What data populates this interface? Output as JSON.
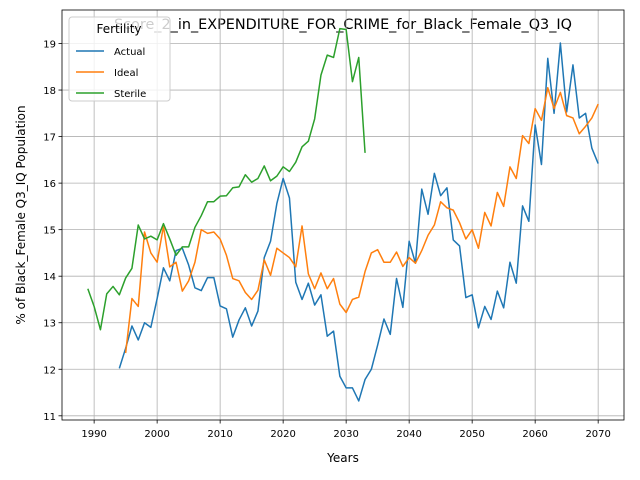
{
  "chart_data": {
    "type": "line",
    "title": "Score_2_in_EXPENDITURE_FOR_CRIME_for_Black_Female_Q3_IQ",
    "xlabel": "Years",
    "ylabel": "% of Black_Female Q3_IQ Population",
    "xlim": [
      1984.9,
      2074.1
    ],
    "ylim": [
      10.91,
      19.72
    ],
    "x_ticks": [
      1990,
      2000,
      2010,
      2020,
      2030,
      2040,
      2050,
      2060,
      2070
    ],
    "y_ticks": [
      11,
      12,
      13,
      14,
      15,
      16,
      17,
      18,
      19
    ],
    "grid": true,
    "legend": {
      "title": "Fertility",
      "placement": "top-left"
    },
    "series": [
      {
        "name": "Actual",
        "color": "#1f77b4",
        "x": [
          1994,
          1995,
          1996,
          1997,
          1998,
          1999,
          2000,
          2001,
          2002,
          2003,
          2004,
          2005,
          2006,
          2007,
          2008,
          2009,
          2010,
          2011,
          2012,
          2013,
          2014,
          2015,
          2016,
          2017,
          2018,
          2019,
          2020,
          2021,
          2022,
          2023,
          2024,
          2025,
          2026,
          2027,
          2028,
          2029,
          2030,
          2031,
          2032,
          2033,
          2034,
          2035,
          2036,
          2037,
          2038,
          2039,
          2040,
          2041,
          2042,
          2043,
          2044,
          2045,
          2046,
          2047,
          2048,
          2049,
          2050,
          2051,
          2052,
          2053,
          2054,
          2055,
          2056,
          2057,
          2058,
          2059,
          2060,
          2061,
          2062,
          2063,
          2064,
          2065,
          2066,
          2067,
          2068,
          2069,
          2070
        ],
        "y": [
          12.02,
          12.45,
          12.93,
          12.63,
          13.0,
          12.9,
          13.52,
          14.18,
          13.9,
          14.55,
          14.6,
          14.24,
          13.75,
          13.69,
          13.97,
          13.97,
          13.36,
          13.3,
          12.69,
          13.06,
          13.32,
          12.93,
          13.25,
          14.4,
          14.75,
          15.56,
          16.1,
          15.68,
          13.87,
          13.5,
          13.85,
          13.38,
          13.6,
          12.71,
          12.82,
          11.85,
          11.6,
          11.6,
          11.32,
          11.78,
          12.0,
          12.52,
          13.08,
          12.75,
          13.95,
          13.33,
          14.75,
          14.28,
          15.87,
          15.33,
          16.21,
          15.73,
          15.9,
          14.78,
          14.65,
          13.54,
          13.6,
          12.89,
          13.35,
          13.07,
          13.68,
          13.32,
          14.3,
          13.85,
          15.51,
          15.18,
          17.25,
          16.4,
          18.68,
          17.5,
          19.01,
          17.53,
          18.54,
          17.4,
          17.5,
          16.75,
          16.42
        ]
      },
      {
        "name": "Ideal",
        "color": "#ff7f0e",
        "x": [
          1995,
          1996,
          1997,
          1998,
          1999,
          2000,
          2001,
          2002,
          2003,
          2004,
          2005,
          2006,
          2007,
          2008,
          2009,
          2010,
          2011,
          2012,
          2013,
          2014,
          2015,
          2016,
          2017,
          2018,
          2019,
          2020,
          2021,
          2022,
          2023,
          2024,
          2025,
          2026,
          2027,
          2028,
          2029,
          2030,
          2031,
          2032,
          2033,
          2034,
          2035,
          2036,
          2037,
          2038,
          2039,
          2040,
          2041,
          2042,
          2043,
          2044,
          2045,
          2046,
          2047,
          2048,
          2049,
          2050,
          2051,
          2052,
          2053,
          2054,
          2055,
          2056,
          2057,
          2058,
          2059,
          2060,
          2061,
          2062,
          2063,
          2064,
          2065,
          2066,
          2067,
          2068,
          2069,
          2070
        ],
        "y": [
          12.35,
          13.52,
          13.35,
          14.95,
          14.5,
          14.3,
          15.07,
          14.2,
          14.3,
          13.68,
          13.9,
          14.3,
          15.0,
          14.92,
          14.95,
          14.8,
          14.45,
          13.95,
          13.9,
          13.65,
          13.5,
          13.7,
          14.35,
          14.02,
          14.6,
          14.5,
          14.4,
          14.2,
          15.08,
          14.05,
          13.73,
          14.07,
          13.73,
          13.95,
          13.4,
          13.22,
          13.5,
          13.55,
          14.1,
          14.5,
          14.57,
          14.3,
          14.3,
          14.52,
          14.21,
          14.4,
          14.28,
          14.55,
          14.88,
          15.1,
          15.6,
          15.47,
          15.42,
          15.15,
          14.8,
          15.0,
          14.6,
          15.37,
          15.08,
          15.8,
          15.5,
          16.35,
          16.1,
          17.02,
          16.85,
          17.6,
          17.35,
          18.05,
          17.6,
          17.95,
          17.45,
          17.4,
          17.06,
          17.22,
          17.4,
          17.7
        ]
      },
      {
        "name": "Sterile",
        "color": "#2ca02c",
        "x": [
          1989,
          1990,
          1991,
          1992,
          1993,
          1994,
          1995,
          1996,
          1997,
          1998,
          1999,
          2000,
          2001,
          2002,
          2003,
          2004,
          2005,
          2006,
          2007,
          2008,
          2009,
          2010,
          2011,
          2012,
          2013,
          2014,
          2015,
          2016,
          2017,
          2018,
          2019,
          2020,
          2021,
          2022,
          2023,
          2024,
          2025,
          2026,
          2027,
          2028,
          2029,
          2030,
          2031,
          2032,
          2033
        ],
        "y": [
          13.73,
          13.35,
          12.85,
          13.62,
          13.78,
          13.6,
          13.96,
          14.17,
          15.1,
          14.8,
          14.86,
          14.78,
          15.13,
          14.8,
          14.45,
          14.63,
          14.63,
          15.05,
          15.3,
          15.6,
          15.6,
          15.72,
          15.73,
          15.9,
          15.92,
          16.18,
          16.02,
          16.1,
          16.37,
          16.05,
          16.15,
          16.35,
          16.25,
          16.45,
          16.78,
          16.9,
          17.38,
          18.32,
          18.75,
          18.7,
          19.32,
          19.3,
          18.18,
          18.7,
          16.65
        ]
      }
    ]
  }
}
